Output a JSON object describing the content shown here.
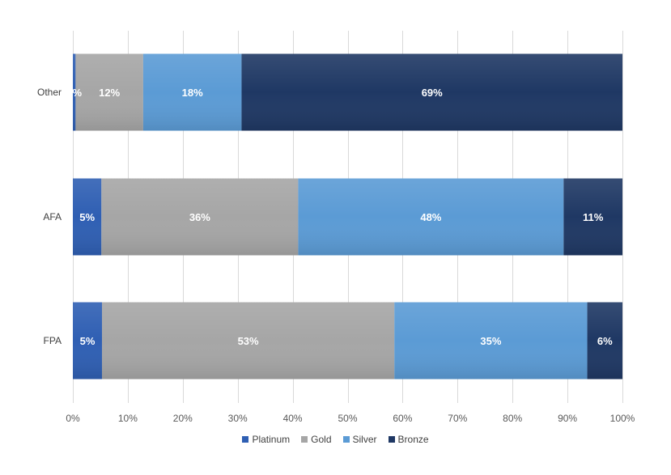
{
  "chart_data": {
    "type": "bar",
    "orientation": "horizontal",
    "stacked": true,
    "percent_stacked": true,
    "categories": [
      "Other",
      "AFA",
      "FPA"
    ],
    "series": [
      {
        "name": "Platinum",
        "color": "#2f5fb3",
        "values": [
          0.5,
          5.2,
          5.3
        ],
        "labels": [
          "1%",
          "5%",
          "5%"
        ]
      },
      {
        "name": "Gold",
        "color": "#a6a6a6",
        "values": [
          12.3,
          35.8,
          53.2
        ],
        "labels": [
          "12%",
          "36%",
          "53%"
        ]
      },
      {
        "name": "Silver",
        "color": "#5b9bd5",
        "values": [
          17.9,
          48.3,
          35.1
        ],
        "labels": [
          "18%",
          "48%",
          "35%"
        ]
      },
      {
        "name": "Bronze",
        "color": "#1f3864",
        "values": [
          69.3,
          10.7,
          6.4
        ],
        "labels": [
          "69%",
          "11%",
          "6%"
        ]
      }
    ],
    "xticks": [
      "0%",
      "10%",
      "20%",
      "30%",
      "40%",
      "50%",
      "60%",
      "70%",
      "80%",
      "90%",
      "100%"
    ],
    "xlim": [
      0,
      100
    ],
    "grid": "vertical",
    "legend_position": "bottom"
  }
}
